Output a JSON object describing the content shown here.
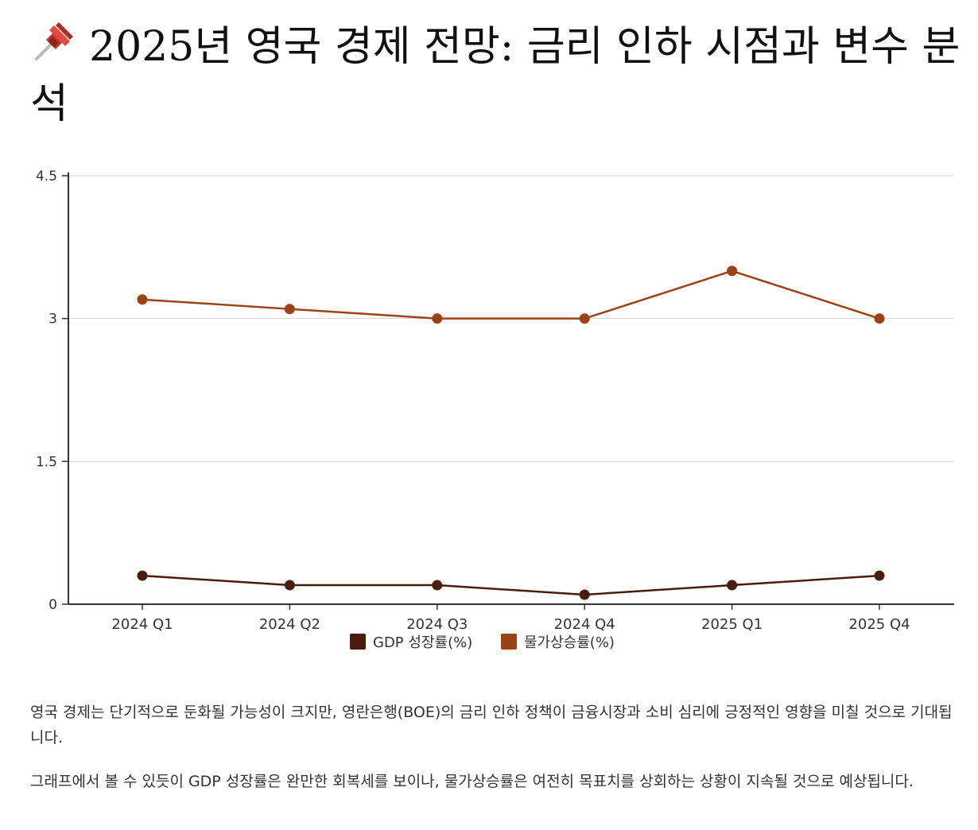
{
  "page": {
    "title": "2025년 영국 경제 전망: 금리 인하 시점과 변수 분석",
    "title_icon": "pushpin-icon",
    "paragraphs": [
      "영국 경제는 단기적으로 둔화될 가능성이 크지만, 영란은행(BOE)의 금리 인하 정책이 금융시장과 소비 심리에 긍정적인 영향을 미칠 것으로 기대됩니다.",
      "그래프에서 볼 수 있듯이 GDP 성장률은 완만한 회복세를 보이나, 물가상승률은 여전히 목표치를 상회하는 상황이 지속될 것으로 예상됩니다."
    ]
  },
  "chart_data": {
    "type": "line",
    "categories": [
      "2024 Q1",
      "2024 Q2",
      "2024 Q3",
      "2024 Q4",
      "2025 Q1",
      "2025 Q4"
    ],
    "series": [
      {
        "name": "GDP 성장률(%)",
        "values": [
          0.3,
          0.2,
          0.2,
          0.1,
          0.2,
          0.3
        ],
        "color": "#4a1c0c"
      },
      {
        "name": "물가상승률(%)",
        "values": [
          3.2,
          3.1,
          3.0,
          3.0,
          3.5,
          3.0
        ],
        "color": "#9b4216"
      }
    ],
    "y_ticks": [
      "0",
      "1.5",
      "3",
      "4.5"
    ],
    "ylim": [
      0,
      4.5
    ],
    "grid": "horizontal",
    "legend_position": "bottom-center"
  }
}
